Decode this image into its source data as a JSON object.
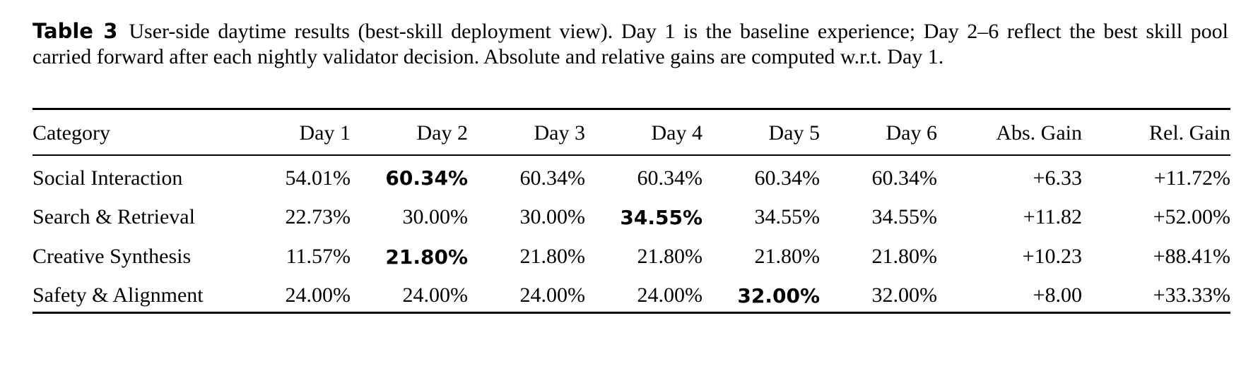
{
  "page": {
    "background": "#ffffff",
    "text_color": "#000000"
  },
  "caption": {
    "label": "Table 3",
    "text": "User-side daytime results (best-skill deployment view). Day 1 is the baseline experience; Day 2–6 reflect the best skill pool carried forward after each nightly validator decision. Absolute and relative gains are computed w.r.t. Day 1."
  },
  "table": {
    "columns": [
      {
        "label": "Category",
        "align": "left"
      },
      {
        "label": "Day 1",
        "align": "right"
      },
      {
        "label": "Day 2",
        "align": "right"
      },
      {
        "label": "Day 3",
        "align": "right"
      },
      {
        "label": "Day 4",
        "align": "right"
      },
      {
        "label": "Day 5",
        "align": "right"
      },
      {
        "label": "Day 6",
        "align": "right"
      },
      {
        "label": "Abs. Gain",
        "align": "right"
      },
      {
        "label": "Rel. Gain",
        "align": "right"
      }
    ],
    "rows": [
      {
        "category": "Social Interaction",
        "values": [
          "54.01%",
          "60.34%",
          "60.34%",
          "60.34%",
          "60.34%",
          "60.34%",
          "+6.33",
          "+11.72%"
        ],
        "bold_value_index": 1
      },
      {
        "category": "Search & Retrieval",
        "values": [
          "22.73%",
          "30.00%",
          "30.00%",
          "34.55%",
          "34.55%",
          "34.55%",
          "+11.82",
          "+52.00%"
        ],
        "bold_value_index": 3
      },
      {
        "category": "Creative Synthesis",
        "values": [
          "11.57%",
          "21.80%",
          "21.80%",
          "21.80%",
          "21.80%",
          "21.80%",
          "+10.23",
          "+88.41%"
        ],
        "bold_value_index": 1
      },
      {
        "category": "Safety & Alignment",
        "values": [
          "24.00%",
          "24.00%",
          "24.00%",
          "24.00%",
          "32.00%",
          "32.00%",
          "+8.00",
          "+33.33%"
        ],
        "bold_value_index": 4
      }
    ]
  }
}
